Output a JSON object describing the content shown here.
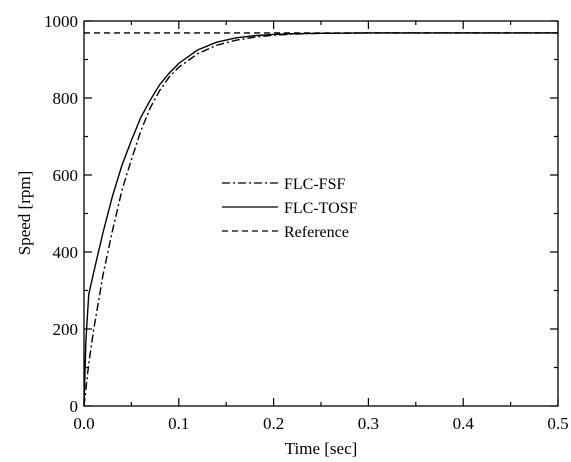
{
  "chart_data": {
    "type": "line",
    "xlabel": "Time [sec]",
    "ylabel": "Speed [rpm]",
    "xlim": [
      0,
      0.5
    ],
    "ylim": [
      0,
      1000
    ],
    "x_ticks": [
      "0.0",
      "0.1",
      "0.2",
      "0.3",
      "0.4",
      "0.5"
    ],
    "y_ticks": [
      "0",
      "200",
      "400",
      "600",
      "800",
      "1000"
    ],
    "grid": false,
    "legend_position": "center",
    "series": [
      {
        "name": "FLC-FSF",
        "line_style": "dash-dot",
        "x": [
          0,
          0.005,
          0.01,
          0.02,
          0.03,
          0.04,
          0.05,
          0.06,
          0.07,
          0.08,
          0.09,
          0.1,
          0.12,
          0.14,
          0.16,
          0.18,
          0.2,
          0.22,
          0.25,
          0.3,
          0.35,
          0.4,
          0.45,
          0.5
        ],
        "y": [
          0,
          110,
          195,
          340,
          455,
          560,
          640,
          715,
          775,
          820,
          855,
          880,
          915,
          937,
          950,
          958,
          963,
          966,
          968,
          969,
          969,
          969,
          969,
          969
        ]
      },
      {
        "name": "FLC-TOSF",
        "line_style": "solid",
        "x": [
          0,
          0.002,
          0.005,
          0.01,
          0.02,
          0.03,
          0.04,
          0.05,
          0.06,
          0.07,
          0.08,
          0.09,
          0.1,
          0.12,
          0.14,
          0.16,
          0.18,
          0.2,
          0.22,
          0.25,
          0.3,
          0.35,
          0.4,
          0.45,
          0.5
        ],
        "y": [
          0,
          170,
          290,
          345,
          450,
          545,
          625,
          690,
          750,
          795,
          835,
          865,
          890,
          925,
          945,
          956,
          962,
          965,
          967,
          968,
          969,
          969,
          969,
          969,
          969
        ]
      },
      {
        "name": "Reference",
        "line_style": "dashed",
        "x": [
          0,
          0.5
        ],
        "y": [
          969,
          969
        ]
      }
    ]
  }
}
